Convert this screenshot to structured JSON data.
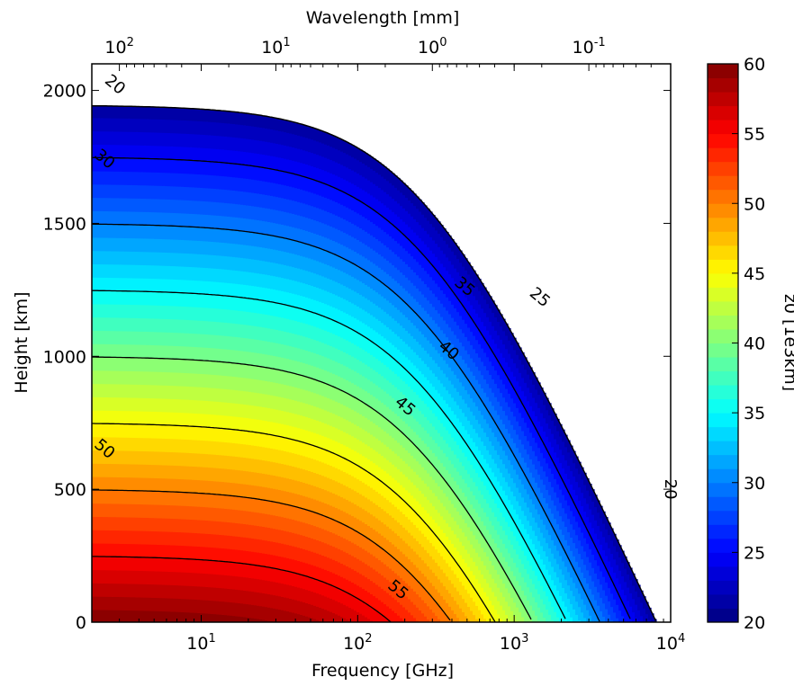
{
  "chart_data": {
    "type": "heatmap",
    "subtype": "filled-contour",
    "xlabel": "Frequency [GHz]",
    "x_scale": "log",
    "xlim": [
      2,
      10000
    ],
    "x_ticks": [
      {
        "value": 10,
        "base": "10",
        "exp": "1"
      },
      {
        "value": 100,
        "base": "10",
        "exp": "2"
      },
      {
        "value": 1000,
        "base": "10",
        "exp": "3"
      },
      {
        "value": 10000,
        "base": "10",
        "exp": "4"
      }
    ],
    "top_xlabel": "Wavelength [mm]",
    "top_x_ticks": [
      {
        "value_mm": 100,
        "base": "10",
        "exp": "2"
      },
      {
        "value_mm": 10,
        "base": "10",
        "exp": "1"
      },
      {
        "value_mm": 1,
        "base": "10",
        "exp": "0"
      },
      {
        "value_mm": 0.1,
        "base": "10",
        "exp": "-1"
      }
    ],
    "ylabel": "Height [km]",
    "ylim": [
      0,
      2100
    ],
    "y_ticks": [
      0,
      500,
      1000,
      1500,
      2000
    ],
    "colorbar": {
      "label": "z0 [1e3km]",
      "colormap": "jet",
      "range": [
        20,
        60
      ],
      "ticks": [
        20,
        25,
        30,
        35,
        40,
        45,
        50,
        55,
        60
      ],
      "levels": 40
    },
    "value_range_shown": [
      20,
      60
    ],
    "grid": false,
    "model": {
      "value_at_ground_low_freq": 60,
      "value_decrease_per_km": 20,
      "plateau_top_km": 1945,
      "knee_frequency_ghz": 250,
      "high_freq_slope_km_per_decade": 1280
    },
    "contour_lines": [
      {
        "level": 20,
        "label": "20"
      },
      {
        "level": 25,
        "label": "25"
      },
      {
        "level": 30,
        "label": "30"
      },
      {
        "level": 35,
        "label": "35"
      },
      {
        "level": 40,
        "label": "40"
      },
      {
        "level": 45,
        "label": "45"
      },
      {
        "level": 50,
        "label": "50"
      },
      {
        "level": 55,
        "label": "55"
      }
    ],
    "contour_label_positions": [
      {
        "text": "20",
        "freq_ghz": 2.8,
        "height_km": 2020,
        "angle": 40
      },
      {
        "text": "30",
        "freq_ghz": 2.4,
        "height_km": 1740,
        "angle": 40
      },
      {
        "text": "25",
        "freq_ghz": 1450,
        "height_km": 1220,
        "angle": 40
      },
      {
        "text": "35",
        "freq_ghz": 480,
        "height_km": 1260,
        "angle": 40
      },
      {
        "text": "40",
        "freq_ghz": 380,
        "height_km": 1020,
        "angle": 40
      },
      {
        "text": "45",
        "freq_ghz": 200,
        "height_km": 810,
        "angle": 40
      },
      {
        "text": "50",
        "freq_ghz": 2.4,
        "height_km": 650,
        "angle": 40
      },
      {
        "text": "55",
        "freq_ghz": 180,
        "height_km": 120,
        "angle": 40
      },
      {
        "text": "20",
        "freq_ghz": 9900,
        "height_km": 500,
        "angle": 90
      }
    ]
  }
}
